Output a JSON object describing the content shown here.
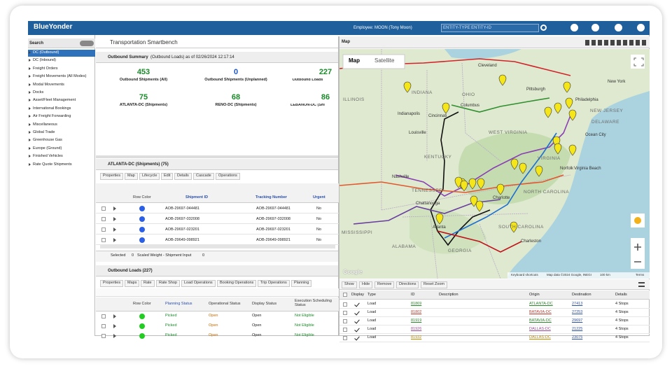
{
  "header": {
    "brand": "BlueYonder",
    "employee": "Employee: MOON (Tony Moon)",
    "search_placeholder": "ENTITY-TYPE ENTITY-ID"
  },
  "sidebar": {
    "title": "Search",
    "items": [
      "DC (Outbound)",
      "DC (Inbound)",
      "Freight Orders",
      "Freight Movements (All Modes)",
      "Modal Movements",
      "Docks",
      "Asset/Fleet Management",
      "International Bookings",
      "Air Freight Forwarding",
      "Miscellaneous",
      "Global Trade",
      "Greenhouse Gas",
      "Europe (Ground)",
      "Finished Vehicles",
      "Rate Quote Shipments"
    ]
  },
  "workspace": {
    "title": "Transportation Smartbench"
  },
  "summary": {
    "title": "Outbound Summary",
    "subtitle": "(Outbound Loads) as of 02/26/2024 12:17:14",
    "stats": [
      {
        "value": 453,
        "label": "Outbound Shipments (All)"
      },
      {
        "value": 0,
        "label": "Outbound Shipments (Unplanned)"
      },
      {
        "value": 227,
        "label": "Outbound Loads"
      },
      {
        "value": 75,
        "label": "ATLANTA-DC (Shipments)"
      },
      {
        "value": 68,
        "label": "RENO-DC (Shipments)"
      },
      {
        "value": 86,
        "label": "LEBANON-DC (Shipments)"
      }
    ]
  },
  "shipments": {
    "title": "ATLANTA-DC (Shipments) (75)",
    "toolbar": [
      "Properties",
      "Map",
      "Lifecycle",
      "Edit",
      "Details",
      "Cascade",
      "Operations"
    ],
    "columns": [
      "Row Color",
      "Shipment ID",
      "Tracking Number",
      "Urgent"
    ],
    "rows": [
      [
        "AOB-29697-044481",
        "AOB-29697-044481",
        "No"
      ],
      [
        "AOB-29697-032008",
        "AOB-29697-032008",
        "No"
      ],
      [
        "AOB-29697-023201",
        "AOB-29697-023201",
        "No"
      ],
      [
        "AOB-29649-098921",
        "AOB-29649-098921",
        "No"
      ]
    ],
    "footer": {
      "selected_label": "Selected",
      "selected": 0,
      "weight_label": "Scaled Weight - Shipment Input",
      "weight": 0
    }
  },
  "loads": {
    "title": "Outbound Loads (227)",
    "toolbar": [
      "Properties",
      "Maps",
      "Rate",
      "Rate Shop",
      "Load Operations",
      "Booking Operations",
      "Trip Operations",
      "Planning"
    ],
    "columns": [
      "Row Color",
      "Planning Status",
      "Operational Status",
      "Display Status",
      "Execution Scheduling Status"
    ],
    "rows": [
      [
        "Picked",
        "Open",
        "Open",
        "Not Eligible"
      ],
      [
        "Picked",
        "Open",
        "Open",
        "Not Eligible"
      ],
      [
        "Picked",
        "Open",
        "Open",
        "Not Eligible"
      ]
    ]
  },
  "map": {
    "title": "Map",
    "tabs": [
      "Map",
      "Satellite"
    ],
    "labels": [
      "ILLINOIS",
      "INDIANA",
      "OHIO",
      "Cleveland",
      "Pittsburgh",
      "Philadelphia",
      "New York",
      "NEW JERSEY",
      "DELAWARE",
      "Ocean City",
      "Indianapolis",
      "Cincinnati",
      "Columbus",
      "Louisville",
      "WEST VIRGINIA",
      "KENTUCKY",
      "VIRGINIA",
      "Norfolk",
      "Virginia Beach",
      "Nashville",
      "TENNESSEE",
      "NORTH CAROLINA",
      "Charlotte",
      "Chattanooga",
      "SOUTH CAROLINA",
      "Charleston",
      "Atlanta",
      "GEORGIA",
      "ALABAMA",
      "MISSISSIPPI"
    ],
    "footer": [
      "Keyboard shortcuts",
      "Map data ©2024 Google, INEGI",
      "100 km",
      "Terms"
    ],
    "logo": "Google"
  },
  "map_grid": {
    "toolbar": [
      "Show",
      "Hide",
      "Remove",
      "Directions",
      "Reset Zoom"
    ],
    "columns": [
      "Display",
      "Type",
      "ID",
      "Description",
      "Origin",
      "Destination",
      "Details"
    ],
    "rows": [
      [
        "Load",
        "81869",
        "ATLANTA-DC",
        "27413",
        "4 Stops"
      ],
      [
        "Load",
        "81802",
        "BATAVIA-DC",
        "27253",
        "4 Stops"
      ],
      [
        "Load",
        "81919",
        "BATAVIA-DC",
        "29697",
        "4 Stops"
      ],
      [
        "Load",
        "81926",
        "DALLAS-DC",
        "21225",
        "4 Stops"
      ],
      [
        "Load",
        "81932",
        "DALLAS-DC",
        "23075",
        "4 Stops"
      ]
    ]
  }
}
